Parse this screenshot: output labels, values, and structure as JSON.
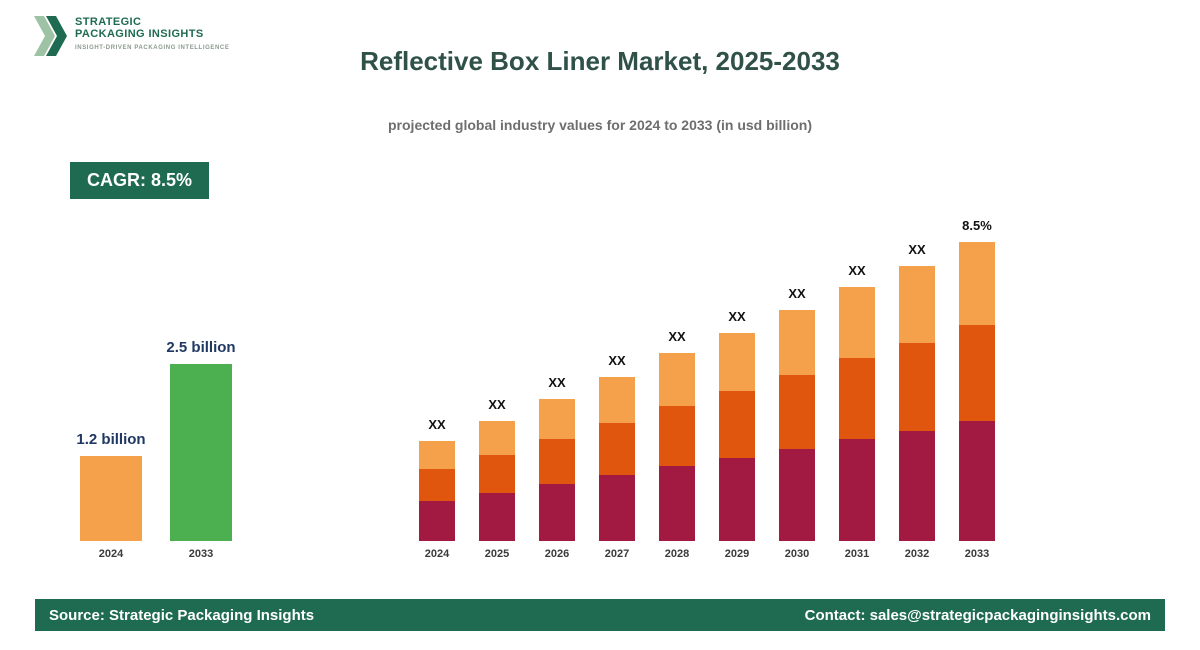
{
  "logo": {
    "line1": "STRATEGIC",
    "line2": "PACKAGING INSIGHTS",
    "tagline": "INSIGHT-DRIVEN PACKAGING INTELLIGENCE"
  },
  "header": {
    "title": "Reflective Box Liner Market, 2025-2033",
    "subtitle": "projected global industry values for 2024 to 2033 (in usd billion)"
  },
  "cagr_badge": {
    "label": "CAGR: 8.5%"
  },
  "chart_data": [
    {
      "type": "bar",
      "name": "summary-comparison",
      "title": "",
      "categories": [
        "2024",
        "2033"
      ],
      "values": [
        1.2,
        2.5
      ],
      "value_labels": [
        "1.2 billion",
        "2.5 billion"
      ],
      "bar_colors": [
        "#F5A04B",
        "#4CAF50"
      ],
      "unit": "usd billion",
      "ylim": [
        0,
        2.5
      ],
      "grid": false,
      "legend": false
    },
    {
      "type": "bar",
      "name": "stacked-projection",
      "stacked": true,
      "title": "",
      "categories": [
        "2024",
        "2025",
        "2026",
        "2027",
        "2028",
        "2029",
        "2030",
        "2031",
        "2032",
        "2033"
      ],
      "series": [
        {
          "name": "bottom",
          "color": "#A21942",
          "values": [
            40,
            48,
            57,
            66,
            75,
            83,
            92,
            102,
            110,
            120
          ]
        },
        {
          "name": "middle",
          "color": "#E1560F",
          "values": [
            32,
            38,
            45,
            52,
            60,
            67,
            74,
            81,
            88,
            96
          ]
        },
        {
          "name": "top",
          "color": "#F5A04B",
          "values": [
            28,
            34,
            40,
            46,
            53,
            58,
            65,
            71,
            77,
            83
          ]
        }
      ],
      "bar_labels": [
        "XX",
        "XX",
        "XX",
        "XX",
        "XX",
        "XX",
        "XX",
        "XX",
        "XX",
        "8.5%"
      ],
      "ylim": [
        0,
        320
      ],
      "grid": false,
      "legend": false,
      "note": "values masked as XX in source image; index units only"
    }
  ],
  "footer": {
    "source": "Source: Strategic Packaging Insights",
    "contact": "Contact: sales@strategicpackaginginsights.com"
  },
  "colors": {
    "brand_green": "#1E6B52",
    "title_text": "#2F5148",
    "subtitle_text": "#6e6e6e",
    "value_label_text": "#1F3864",
    "mini_bar_orange": "#F5A04B",
    "mini_bar_green": "#4CAF50",
    "stack_bottom": "#A21942",
    "stack_middle": "#E1560F",
    "stack_top": "#F5A04B"
  }
}
